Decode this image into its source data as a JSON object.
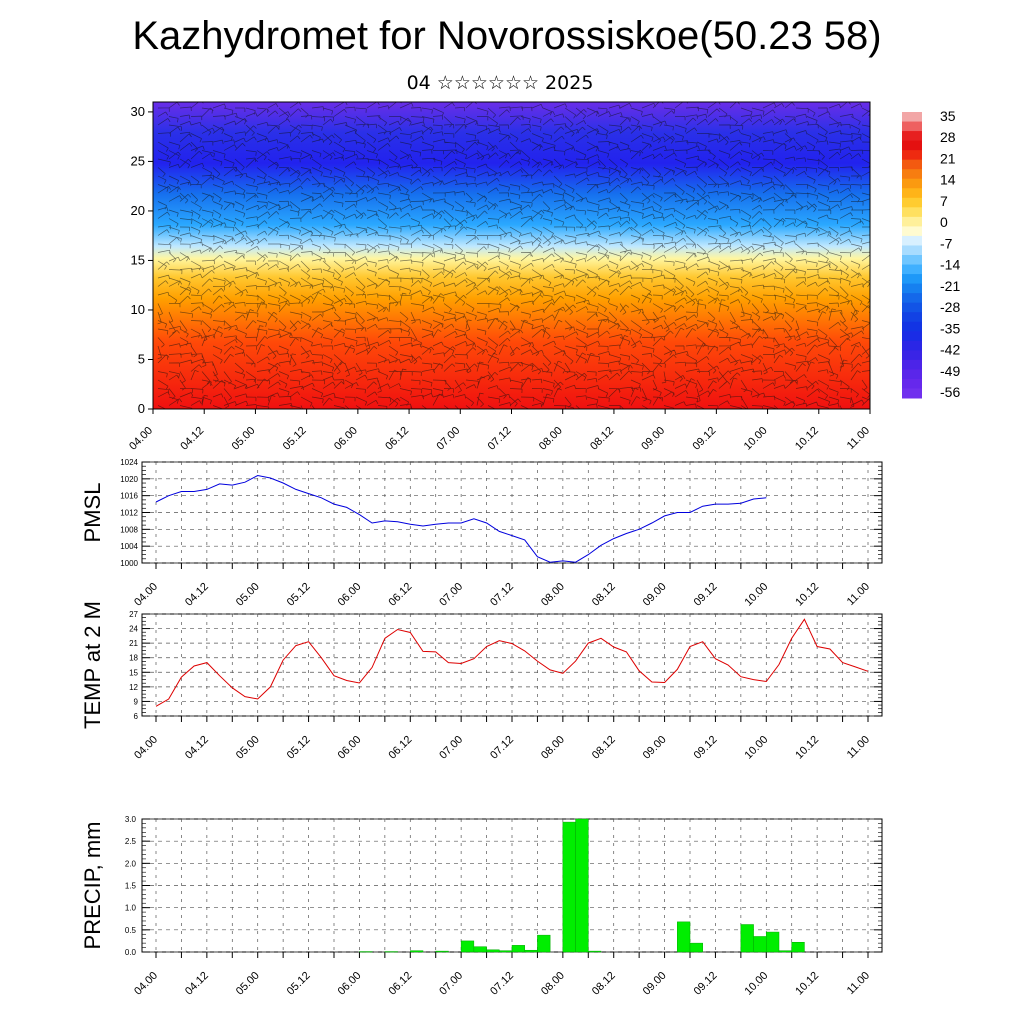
{
  "title": "Kazhydromet for Novorossiskoe(50.23 58)",
  "subtitle": "04 ☆☆☆☆☆☆ 2025",
  "chart_data": [
    {
      "type": "heatmap",
      "panel": "upper-air",
      "x_tick_labels": [
        "04.00",
        "04.12",
        "05.00",
        "05.12",
        "06.00",
        "06.12",
        "07.00",
        "07.12",
        "08.00",
        "08.12",
        "09.00",
        "09.12",
        "10.00",
        "10.12",
        "11.00"
      ],
      "y_ticks": [
        0,
        5,
        10,
        15,
        20,
        25,
        30
      ],
      "ylim": [
        0,
        31
      ],
      "grid": false,
      "colorbar_labels": [
        "35",
        "28",
        "21",
        "14",
        "7",
        "0",
        "-7",
        "-14",
        "-21",
        "-28",
        "-35",
        "-42",
        "-49",
        "-56"
      ],
      "colorbar_range": [
        -63,
        40
      ],
      "overlay": "wind barbs",
      "colors": {
        "warm_low": "#f01010",
        "mid": "#ffa000",
        "freezing": "#fff6a0",
        "cold": "#2aa8ff",
        "upper": "#2222ee",
        "top": "#6a2ee8"
      }
    },
    {
      "type": "line",
      "panel": "pmsl",
      "ylabel": "PMSL",
      "x_tick_labels": [
        "04.00",
        "04.12",
        "05.00",
        "05.12",
        "06.00",
        "06.12",
        "07.00",
        "07.12",
        "08.00",
        "08.12",
        "09.00",
        "09.12",
        "10.00",
        "10.12",
        "11.00"
      ],
      "y_ticks": [
        1000,
        1004,
        1008,
        1012,
        1016,
        1020,
        1024
      ],
      "ylim": [
        1000,
        1024
      ],
      "grid": true,
      "color": "#0000dd",
      "x_hours": [
        0,
        3,
        6,
        9,
        12,
        15,
        18,
        21,
        24,
        27,
        30,
        33,
        36,
        39,
        42,
        45,
        48,
        51,
        54,
        57,
        60,
        63,
        66,
        69,
        72,
        75,
        78,
        81,
        84,
        87,
        90,
        93,
        96,
        99,
        102,
        105,
        108,
        111,
        114,
        117,
        120,
        123,
        126,
        129,
        132,
        135,
        138,
        141,
        144
      ],
      "values": [
        1014.5,
        1016,
        1017,
        1017,
        1017.5,
        1018.8,
        1018.5,
        1019.2,
        1020.8,
        1020.2,
        1019,
        1017.5,
        1016.5,
        1015.5,
        1014,
        1013.2,
        1011.5,
        1009.5,
        1010,
        1009.8,
        1009.2,
        1008.8,
        1009.2,
        1009.5,
        1009.5,
        1010.5,
        1009.5,
        1007.5,
        1006.5,
        1005.5,
        1001.5,
        1000.2,
        1000.5,
        1000.2,
        1002,
        1004.2,
        1005.8,
        1007,
        1008,
        1009.5,
        1011.2,
        1012,
        1012,
        1013.5,
        1014,
        1014,
        1014.2,
        1015.2,
        1015.5
      ]
    },
    {
      "type": "line",
      "panel": "t2m",
      "ylabel": "TEMP at 2 M",
      "x_tick_labels": [
        "04.00",
        "04.12",
        "05.00",
        "05.12",
        "06.00",
        "06.12",
        "07.00",
        "07.12",
        "08.00",
        "08.12",
        "09.00",
        "09.12",
        "10.00",
        "10.12",
        "11.00"
      ],
      "y_ticks": [
        6,
        9,
        12,
        15,
        18,
        21,
        24,
        27
      ],
      "ylim": [
        6,
        27
      ],
      "grid": true,
      "color": "#dd0000",
      "x_hours": [
        0,
        3,
        6,
        9,
        12,
        15,
        18,
        21,
        24,
        27,
        30,
        33,
        36,
        39,
        42,
        45,
        48,
        51,
        54,
        57,
        60,
        63,
        66,
        69,
        72,
        75,
        78,
        81,
        84,
        87,
        90,
        93,
        96,
        99,
        102,
        105,
        108,
        111,
        114,
        117,
        120,
        123,
        126,
        129,
        132,
        135,
        138,
        141,
        144,
        147,
        150,
        153,
        156,
        159,
        162,
        165,
        168
      ],
      "values": [
        8,
        9.5,
        14,
        16.3,
        17,
        14.3,
        11.8,
        10,
        9.5,
        12,
        17.5,
        20.5,
        21.3,
        18,
        14.3,
        13.3,
        12.8,
        16,
        22,
        23.8,
        23.2,
        19.3,
        19.2,
        17,
        16.8,
        17.8,
        20.3,
        21.5,
        20.9,
        19.4,
        17.3,
        15.5,
        14.8,
        17.3,
        21,
        22,
        20.2,
        19.2,
        15.3,
        13,
        12.9,
        15.6,
        20.3,
        21.3,
        17.8,
        16.5,
        14.1,
        13.5,
        13.1,
        16.6,
        22,
        25.9,
        20.3,
        19.8,
        17,
        16.1,
        15.2
      ]
    },
    {
      "type": "bar",
      "panel": "precip",
      "ylabel": "PRECIP, mm",
      "x_tick_labels": [
        "04.00",
        "04.12",
        "05.00",
        "05.12",
        "06.00",
        "06.12",
        "07.00",
        "07.12",
        "08.00",
        "08.12",
        "09.00",
        "09.12",
        "10.00",
        "10.12",
        "11.00"
      ],
      "y_tick_labels": [
        "0.0",
        "0.5",
        "1.0",
        "1.5",
        "2.0",
        "2.5",
        "3.0"
      ],
      "ylim": [
        0,
        3.0
      ],
      "grid": true,
      "color": "#00ee00",
      "bar_start_hours": [
        48,
        54,
        60,
        66,
        72,
        75,
        78,
        81,
        84,
        87,
        90,
        96,
        99,
        102,
        123,
        126,
        138,
        141,
        144,
        147,
        150
      ],
      "values": [
        0.01,
        0.01,
        0.03,
        0.02,
        0.25,
        0.12,
        0.05,
        0.03,
        0.15,
        0.04,
        0.38,
        2.93,
        3.0,
        0.02,
        0.68,
        0.2,
        0.62,
        0.35,
        0.45,
        0.03,
        0.22
      ]
    }
  ]
}
